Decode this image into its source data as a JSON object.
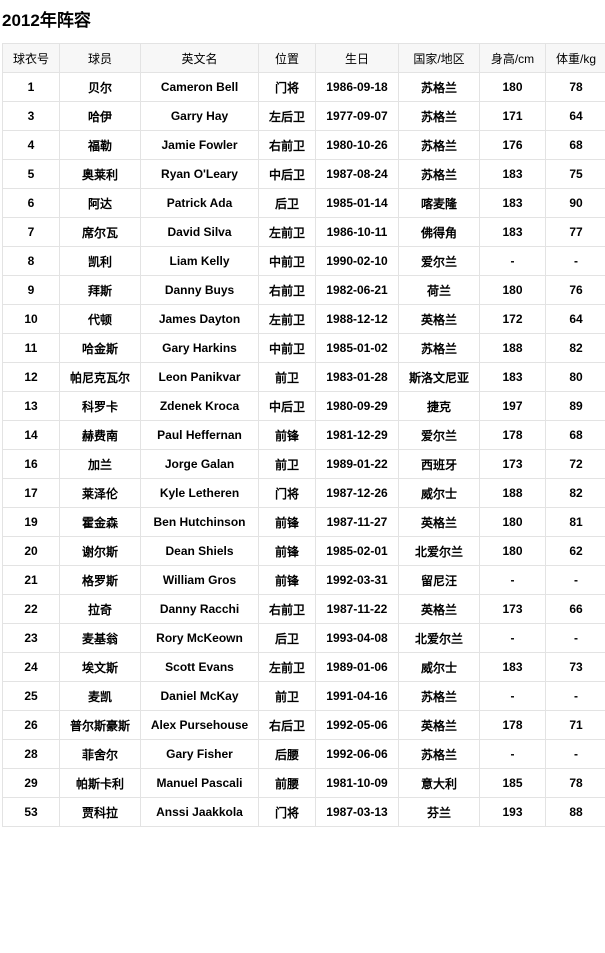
{
  "page_title": "2012年阵容",
  "table": {
    "headers": [
      "球衣号",
      "球员",
      "英文名",
      "位置",
      "生日",
      "国家/地区",
      "身高/cm",
      "体重/kg"
    ],
    "rows": [
      [
        "1",
        "贝尔",
        "Cameron Bell",
        "门将",
        "1986-09-18",
        "苏格兰",
        "180",
        "78"
      ],
      [
        "3",
        "哈伊",
        "Garry Hay",
        "左后卫",
        "1977-09-07",
        "苏格兰",
        "171",
        "64"
      ],
      [
        "4",
        "福勒",
        "Jamie Fowler",
        "右前卫",
        "1980-10-26",
        "苏格兰",
        "176",
        "68"
      ],
      [
        "5",
        "奥莱利",
        "Ryan O'Leary",
        "中后卫",
        "1987-08-24",
        "苏格兰",
        "183",
        "75"
      ],
      [
        "6",
        "阿达",
        "Patrick Ada",
        "后卫",
        "1985-01-14",
        "喀麦隆",
        "183",
        "90"
      ],
      [
        "7",
        "席尔瓦",
        "David Silva",
        "左前卫",
        "1986-10-11",
        "佛得角",
        "183",
        "77"
      ],
      [
        "8",
        "凯利",
        "Liam Kelly",
        "中前卫",
        "1990-02-10",
        "爱尔兰",
        "-",
        "-"
      ],
      [
        "9",
        "拜斯",
        "Danny Buys",
        "右前卫",
        "1982-06-21",
        "荷兰",
        "180",
        "76"
      ],
      [
        "10",
        "代顿",
        "James Dayton",
        "左前卫",
        "1988-12-12",
        "英格兰",
        "172",
        "64"
      ],
      [
        "11",
        "哈金斯",
        "Gary Harkins",
        "中前卫",
        "1985-01-02",
        "苏格兰",
        "188",
        "82"
      ],
      [
        "12",
        "帕尼克瓦尔",
        "Leon Panikvar",
        "前卫",
        "1983-01-28",
        "斯洛文尼亚",
        "183",
        "80"
      ],
      [
        "13",
        "科罗卡",
        "Zdenek Kroca",
        "中后卫",
        "1980-09-29",
        "捷克",
        "197",
        "89"
      ],
      [
        "14",
        "赫费南",
        "Paul Heffernan",
        "前锋",
        "1981-12-29",
        "爱尔兰",
        "178",
        "68"
      ],
      [
        "16",
        "加兰",
        "Jorge Galan",
        "前卫",
        "1989-01-22",
        "西班牙",
        "173",
        "72"
      ],
      [
        "17",
        "莱泽伦",
        "Kyle Letheren",
        "门将",
        "1987-12-26",
        "威尔士",
        "188",
        "82"
      ],
      [
        "19",
        "霍金森",
        "Ben Hutchinson",
        "前锋",
        "1987-11-27",
        "英格兰",
        "180",
        "81"
      ],
      [
        "20",
        "谢尔斯",
        "Dean Shiels",
        "前锋",
        "1985-02-01",
        "北爱尔兰",
        "180",
        "62"
      ],
      [
        "21",
        "格罗斯",
        "William Gros",
        "前锋",
        "1992-03-31",
        "留尼汪",
        "-",
        "-"
      ],
      [
        "22",
        "拉奇",
        "Danny Racchi",
        "右前卫",
        "1987-11-22",
        "英格兰",
        "173",
        "66"
      ],
      [
        "23",
        "麦基翁",
        "Rory McKeown",
        "后卫",
        "1993-04-08",
        "北爱尔兰",
        "-",
        "-"
      ],
      [
        "24",
        "埃文斯",
        "Scott Evans",
        "左前卫",
        "1989-01-06",
        "威尔士",
        "183",
        "73"
      ],
      [
        "25",
        "麦凯",
        "Daniel McKay",
        "前卫",
        "1991-04-16",
        "苏格兰",
        "-",
        "-"
      ],
      [
        "26",
        "普尔斯豪斯",
        "Alex Pursehouse",
        "右后卫",
        "1992-05-06",
        "英格兰",
        "178",
        "71"
      ],
      [
        "28",
        "菲舍尔",
        "Gary Fisher",
        "后腰",
        "1992-06-06",
        "苏格兰",
        "-",
        "-"
      ],
      [
        "29",
        "帕斯卡利",
        "Manuel Pascali",
        "前腰",
        "1981-10-09",
        "意大利",
        "185",
        "78"
      ],
      [
        "53",
        "贾科拉",
        "Anssi Jaakkola",
        "门将",
        "1987-03-13",
        "芬兰",
        "193",
        "88"
      ]
    ]
  }
}
